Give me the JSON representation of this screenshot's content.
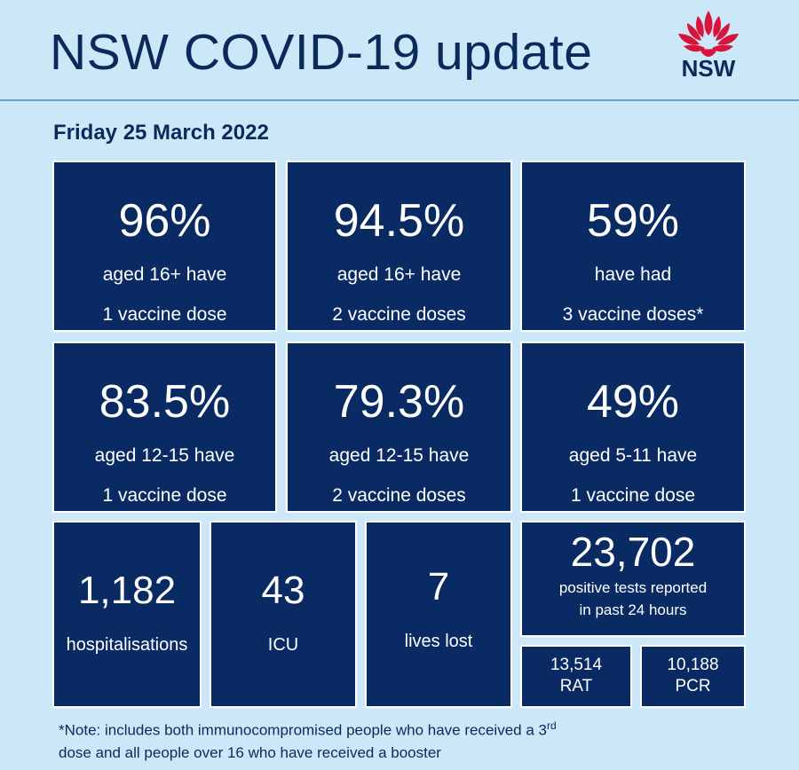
{
  "header": {
    "title": "NSW COVID-19 update",
    "logo_text": "NSW"
  },
  "date": "Friday 25 March 2022",
  "stats": [
    {
      "value": "96%",
      "line1": "aged 16+ have",
      "line2": "1 vaccine dose"
    },
    {
      "value": "94.5%",
      "line1": "aged 16+ have",
      "line2": "2 vaccine doses"
    },
    {
      "value": "59%",
      "line1": "have had",
      "line2": "3 vaccine doses*"
    },
    {
      "value": "83.5%",
      "line1": "aged 12-15 have",
      "line2": "1 vaccine dose"
    },
    {
      "value": "79.3%",
      "line1": "aged 12-15 have",
      "line2": "2 vaccine doses"
    },
    {
      "value": "49%",
      "line1": "aged 5-11 have",
      "line2": "1 vaccine dose"
    }
  ],
  "hospital": {
    "value": "1,182",
    "label": "hospitalisations"
  },
  "icu": {
    "value": "43",
    "label": "ICU"
  },
  "lives": {
    "value": "7",
    "label": "lives lost"
  },
  "tests": {
    "value": "23,702",
    "line1": "positive tests reported",
    "line2": "in past 24 hours",
    "rat": {
      "value": "13,514",
      "label": "RAT"
    },
    "pcr": {
      "value": "10,188",
      "label": "PCR"
    }
  },
  "footnote": {
    "line1_before": "*Note: includes both immunocompromised  people who have received a 3",
    "line1_sup": "rd",
    "line2": "dose and all people over 16 who have received a booster"
  },
  "colors": {
    "background": "#cce8f8",
    "tile": "#092a63",
    "title_text": "#0b2a5b",
    "logo_red": "#d7153a"
  }
}
